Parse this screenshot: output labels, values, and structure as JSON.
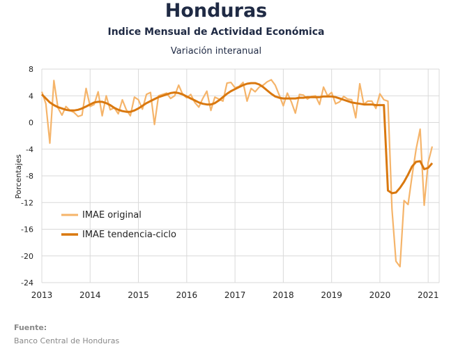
{
  "header": {
    "title": "Honduras",
    "subtitle": "Indice Mensual de  Actividad Económica",
    "subtitle2": "Variación interanual"
  },
  "footer": {
    "source_label": "Fuente:",
    "source_text": "Banco Central de Honduras"
  },
  "colors": {
    "original": "#F5B46A",
    "trend": "#D9780F",
    "grid": "#d9d9d9",
    "text": "#1f2a44"
  },
  "chart_data": {
    "type": "line",
    "title": "Honduras",
    "subtitle": "Indice Mensual de  Actividad Económica",
    "ylabel": "Porcentajes",
    "xlabel": "",
    "ylim": [
      -24,
      8
    ],
    "xlim": [
      "2013-01",
      "2021-02"
    ],
    "grid": true,
    "legend_position": "left-lower",
    "y_ticks": [
      "8",
      "4",
      "0",
      "-4",
      "-8",
      "-12",
      "-16",
      "-20",
      "-24"
    ],
    "x_ticks": [
      "2013",
      "2014",
      "2015",
      "2016",
      "2017",
      "2018",
      "2019",
      "2020",
      "2021"
    ],
    "x": [
      "2013-01",
      "2013-02",
      "2013-03",
      "2013-04",
      "2013-05",
      "2013-06",
      "2013-07",
      "2013-08",
      "2013-09",
      "2013-10",
      "2013-11",
      "2013-12",
      "2014-01",
      "2014-02",
      "2014-03",
      "2014-04",
      "2014-05",
      "2014-06",
      "2014-07",
      "2014-08",
      "2014-09",
      "2014-10",
      "2014-11",
      "2014-12",
      "2015-01",
      "2015-02",
      "2015-03",
      "2015-04",
      "2015-05",
      "2015-06",
      "2015-07",
      "2015-08",
      "2015-09",
      "2015-10",
      "2015-11",
      "2015-12",
      "2016-01",
      "2016-02",
      "2016-03",
      "2016-04",
      "2016-05",
      "2016-06",
      "2016-07",
      "2016-08",
      "2016-09",
      "2016-10",
      "2016-11",
      "2016-12",
      "2017-01",
      "2017-02",
      "2017-03",
      "2017-04",
      "2017-05",
      "2017-06",
      "2017-07",
      "2017-08",
      "2017-09",
      "2017-10",
      "2017-11",
      "2017-12",
      "2018-01",
      "2018-02",
      "2018-03",
      "2018-04",
      "2018-05",
      "2018-06",
      "2018-07",
      "2018-08",
      "2018-09",
      "2018-10",
      "2018-11",
      "2018-12",
      "2019-01",
      "2019-02",
      "2019-03",
      "2019-04",
      "2019-05",
      "2019-06",
      "2019-07",
      "2019-08",
      "2019-09",
      "2019-10",
      "2019-11",
      "2019-12",
      "2020-01",
      "2020-02",
      "2020-03",
      "2020-04",
      "2020-05",
      "2020-06",
      "2020-07",
      "2020-08",
      "2020-09",
      "2020-10",
      "2020-11",
      "2020-12",
      "2021-01",
      "2021-02"
    ],
    "series": [
      {
        "name": "IMAE original",
        "color": "#F5B46A",
        "values": [
          4.6,
          2.8,
          -3.1,
          6.3,
          2.2,
          1.1,
          2.4,
          1.8,
          1.5,
          0.9,
          1.1,
          5.1,
          2.4,
          2.7,
          4.6,
          1.0,
          4.0,
          1.9,
          2.2,
          1.3,
          3.4,
          1.9,
          1.0,
          3.8,
          3.4,
          2.0,
          4.2,
          4.5,
          -0.3,
          4.0,
          4.2,
          4.4,
          3.6,
          4.0,
          5.6,
          4.2,
          3.7,
          4.2,
          3.0,
          2.3,
          3.6,
          4.7,
          1.8,
          3.8,
          3.5,
          3.2,
          5.9,
          6.0,
          5.2,
          5.4,
          6.0,
          3.2,
          5.1,
          4.6,
          5.3,
          5.6,
          6.1,
          6.4,
          5.6,
          4.1,
          2.5,
          4.4,
          3.1,
          1.4,
          4.2,
          4.1,
          3.5,
          3.9,
          4.0,
          2.7,
          5.3,
          4.0,
          4.5,
          2.8,
          3.1,
          3.9,
          3.5,
          3.4,
          0.7,
          5.8,
          2.7,
          3.2,
          3.2,
          2.1,
          4.3,
          3.4,
          3.2,
          -13.0,
          -20.8,
          -21.6,
          -11.7,
          -12.3,
          -8.0,
          -4.0,
          -1.0,
          -12.4,
          -6.0,
          -3.6
        ]
      },
      {
        "name": "IMAE tendencia-ciclo",
        "color": "#D9780F",
        "values": [
          4.2,
          3.6,
          3.0,
          2.6,
          2.3,
          2.1,
          1.9,
          1.8,
          1.8,
          1.9,
          2.1,
          2.4,
          2.7,
          3.0,
          3.1,
          3.1,
          2.9,
          2.6,
          2.2,
          1.9,
          1.7,
          1.6,
          1.6,
          1.8,
          2.1,
          2.5,
          2.9,
          3.2,
          3.5,
          3.8,
          4.0,
          4.2,
          4.4,
          4.5,
          4.4,
          4.2,
          3.9,
          3.6,
          3.3,
          3.0,
          2.8,
          2.7,
          2.7,
          2.9,
          3.3,
          3.8,
          4.3,
          4.7,
          5.0,
          5.3,
          5.6,
          5.8,
          5.9,
          5.9,
          5.7,
          5.3,
          4.8,
          4.3,
          3.9,
          3.7,
          3.6,
          3.6,
          3.6,
          3.6,
          3.7,
          3.7,
          3.8,
          3.8,
          3.8,
          3.8,
          3.9,
          3.9,
          3.9,
          3.8,
          3.6,
          3.4,
          3.2,
          3.0,
          2.9,
          2.8,
          2.7,
          2.7,
          2.7,
          2.6,
          2.6,
          2.6,
          -10.2,
          -10.6,
          -10.5,
          -9.8,
          -8.9,
          -7.8,
          -6.6,
          -5.9,
          -5.8,
          -7.0,
          -6.8,
          -6.1
        ]
      }
    ]
  }
}
